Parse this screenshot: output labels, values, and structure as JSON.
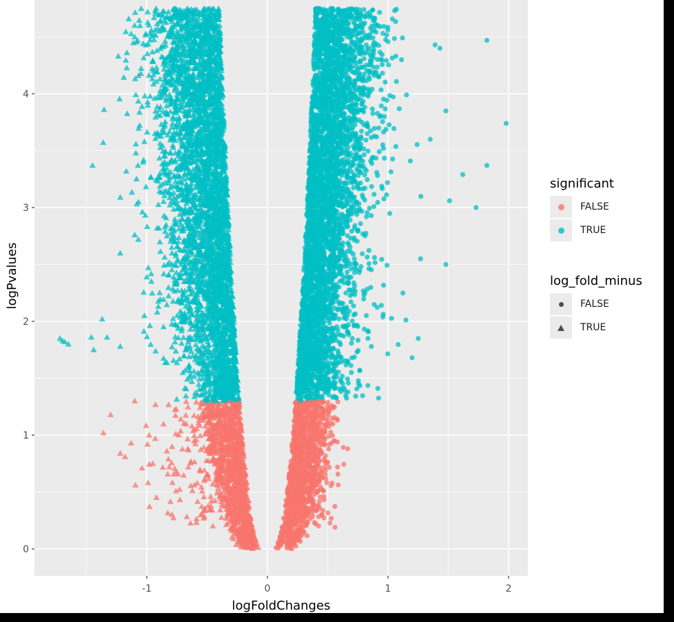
{
  "chart_data": {
    "type": "scatter",
    "subtype": "volcano",
    "title": "",
    "xlabel": "logFoldChanges",
    "ylabel": "logPvalues",
    "xlim": [
      -1.95,
      2.15
    ],
    "ylim": [
      -0.25,
      4.8
    ],
    "x_ticks": [
      -1,
      0,
      1,
      2
    ],
    "x_tick_labels": [
      "-1",
      "0",
      "1",
      "2"
    ],
    "y_ticks": [
      0,
      1,
      2,
      3,
      4
    ],
    "y_tick_labels": [
      "0",
      "1",
      "2",
      "3",
      "4"
    ],
    "grid": true,
    "significance_threshold_logP": 1.3,
    "legend_position": "right",
    "legends": [
      {
        "title": "significant",
        "aesthetic": "color",
        "entries": [
          {
            "label": "FALSE",
            "color": "#F8766D"
          },
          {
            "label": "TRUE",
            "color": "#00BFC4"
          }
        ]
      },
      {
        "title": "log_fold_minus",
        "aesthetic": "shape",
        "entries": [
          {
            "label": "FALSE",
            "shape": "circle"
          },
          {
            "label": "TRUE",
            "shape": "triangle"
          }
        ]
      }
    ],
    "series": [
      {
        "name": "significant=FALSE, log_fold_minus=TRUE",
        "color": "#F8766D",
        "shape": "triangle",
        "x_range": [
          -1.35,
          0
        ],
        "y_range": [
          0,
          1.3
        ],
        "approx_count": 6000
      },
      {
        "name": "significant=FALSE, log_fold_minus=FALSE",
        "color": "#F8766D",
        "shape": "circle",
        "x_range": [
          0,
          0.8
        ],
        "y_range": [
          0,
          1.3
        ],
        "approx_count": 6000
      },
      {
        "name": "significant=TRUE, log_fold_minus=TRUE",
        "color": "#00BFC4",
        "shape": "triangle",
        "x_range": [
          -1.75,
          -0.1
        ],
        "y_range": [
          1.3,
          4.8
        ],
        "approx_count": 5000
      },
      {
        "name": "significant=TRUE, log_fold_minus=FALSE",
        "color": "#00BFC4",
        "shape": "circle",
        "x_range": [
          0.05,
          1.98
        ],
        "y_range": [
          1.3,
          4.8
        ],
        "approx_count": 5000
      }
    ],
    "outliers": {
      "triangle_teal": [
        [
          -1.72,
          1.85
        ],
        [
          -1.7,
          1.83
        ],
        [
          -1.68,
          1.82
        ],
        [
          -1.65,
          1.8
        ],
        [
          -1.46,
          1.86
        ],
        [
          -1.44,
          1.75
        ],
        [
          -1.37,
          2.02
        ],
        [
          -1.33,
          1.86
        ],
        [
          -1.22,
          1.78
        ],
        [
          -1.45,
          3.37
        ],
        [
          -1.17,
          3.32
        ],
        [
          -1.1,
          2.76
        ],
        [
          -1.07,
          2.72
        ],
        [
          -1.22,
          2.6
        ],
        [
          -1.02,
          2.05
        ],
        [
          -1.1,
          4.5
        ],
        [
          -1.03,
          4.44
        ],
        [
          -1.0,
          2.39
        ],
        [
          -1.02,
          3.58
        ],
        [
          -1.22,
          3.09
        ]
      ],
      "circle_teal": [
        [
          1.98,
          3.74
        ],
        [
          1.82,
          4.47
        ],
        [
          1.82,
          3.37
        ],
        [
          1.73,
          3.0
        ],
        [
          1.62,
          3.29
        ],
        [
          1.51,
          3.06
        ],
        [
          1.48,
          2.5
        ],
        [
          1.48,
          3.85
        ],
        [
          1.25,
          1.85
        ],
        [
          1.2,
          1.68
        ],
        [
          1.27,
          2.55
        ],
        [
          1.39,
          4.43
        ],
        [
          1.43,
          4.4
        ],
        [
          1.35,
          3.6
        ]
      ],
      "triangle_coral": [
        [
          -1.3,
          1.18
        ],
        [
          -1.36,
          1.02
        ],
        [
          -1.22,
          0.84
        ],
        [
          -1.18,
          0.81
        ],
        [
          -1.13,
          0.93
        ],
        [
          -1.04,
          0.71
        ],
        [
          -1.1,
          1.3
        ],
        [
          -0.98,
          1.0
        ],
        [
          -0.93,
          0.97
        ],
        [
          -0.95,
          0.75
        ]
      ],
      "circle_coral": [
        [
          0.55,
          0.95
        ],
        [
          0.58,
          0.94
        ],
        [
          0.56,
          0.19
        ],
        [
          0.4,
          0.22
        ]
      ]
    }
  },
  "axes": {
    "x_title": "logFoldChanges",
    "y_title": "logPvalues",
    "x_tick_labels": [
      "-1",
      "0",
      "1",
      "2"
    ],
    "y_tick_labels": [
      "0",
      "1",
      "2",
      "3",
      "4"
    ]
  },
  "legend": {
    "color_title": "significant",
    "color_entries": [
      "FALSE",
      "TRUE"
    ],
    "shape_title": "log_fold_minus",
    "shape_entries": [
      "FALSE",
      "TRUE"
    ]
  }
}
